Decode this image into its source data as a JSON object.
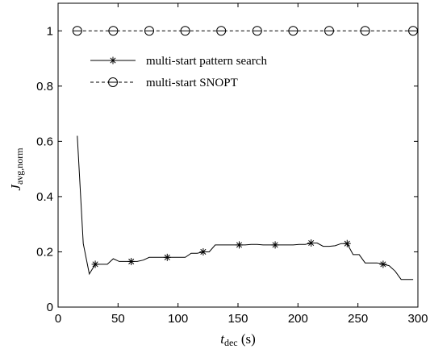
{
  "chart_data": {
    "type": "line",
    "xlabel_main": "t",
    "xlabel_sub": "dec",
    "xlabel_unit": " (s)",
    "ylabel_main": "J",
    "ylabel_sub": "avg,norm",
    "xlim": [
      0,
      300
    ],
    "ylim": [
      0,
      1.1
    ],
    "xticks": [
      "0",
      "50",
      "100",
      "150",
      "200",
      "250",
      "300"
    ],
    "yticks": [
      "0",
      "0.2",
      "0.4",
      "0.6",
      "0.8",
      "1"
    ],
    "grid": false,
    "legend_position": "top-left",
    "series": [
      {
        "name": "multi-start pattern search",
        "line_style": "solid",
        "marker": "asterisk",
        "color": "#000000",
        "x": [
          16,
          21,
          26,
          31,
          36,
          41,
          46,
          51,
          56,
          61,
          66,
          71,
          76,
          81,
          86,
          91,
          96,
          101,
          106,
          111,
          116,
          121,
          126,
          131,
          136,
          141,
          146,
          151,
          156,
          161,
          166,
          171,
          176,
          181,
          186,
          191,
          196,
          201,
          206,
          211,
          216,
          221,
          226,
          231,
          236,
          241,
          246,
          251,
          256,
          261,
          266,
          271,
          276,
          281,
          286,
          291,
          296
        ],
        "y": [
          0.62,
          0.23,
          0.12,
          0.155,
          0.155,
          0.155,
          0.175,
          0.165,
          0.165,
          0.165,
          0.165,
          0.17,
          0.18,
          0.18,
          0.18,
          0.18,
          0.18,
          0.18,
          0.18,
          0.195,
          0.195,
          0.2,
          0.2,
          0.225,
          0.225,
          0.225,
          0.225,
          0.225,
          0.225,
          0.227,
          0.227,
          0.225,
          0.225,
          0.225,
          0.225,
          0.225,
          0.225,
          0.227,
          0.227,
          0.232,
          0.232,
          0.22,
          0.22,
          0.222,
          0.23,
          0.23,
          0.19,
          0.19,
          0.16,
          0.16,
          0.16,
          0.155,
          0.15,
          0.13,
          0.1,
          0.1,
          0.1
        ],
        "marker_x": [
          31,
          61,
          91,
          121,
          151,
          181,
          211,
          241,
          271
        ],
        "marker_y": [
          0.155,
          0.165,
          0.18,
          0.2,
          0.225,
          0.225,
          0.232,
          0.23,
          0.155
        ]
      },
      {
        "name": "multi-start SNOPT",
        "line_style": "dashed",
        "marker": "circle-dot",
        "color": "#000000",
        "x": [
          16,
          296
        ],
        "y": [
          1,
          1
        ],
        "marker_x": [
          16,
          46,
          76,
          106,
          136,
          166,
          196,
          226,
          256,
          296
        ],
        "marker_y": [
          1,
          1,
          1,
          1,
          1,
          1,
          1,
          1,
          1,
          1
        ]
      }
    ]
  }
}
